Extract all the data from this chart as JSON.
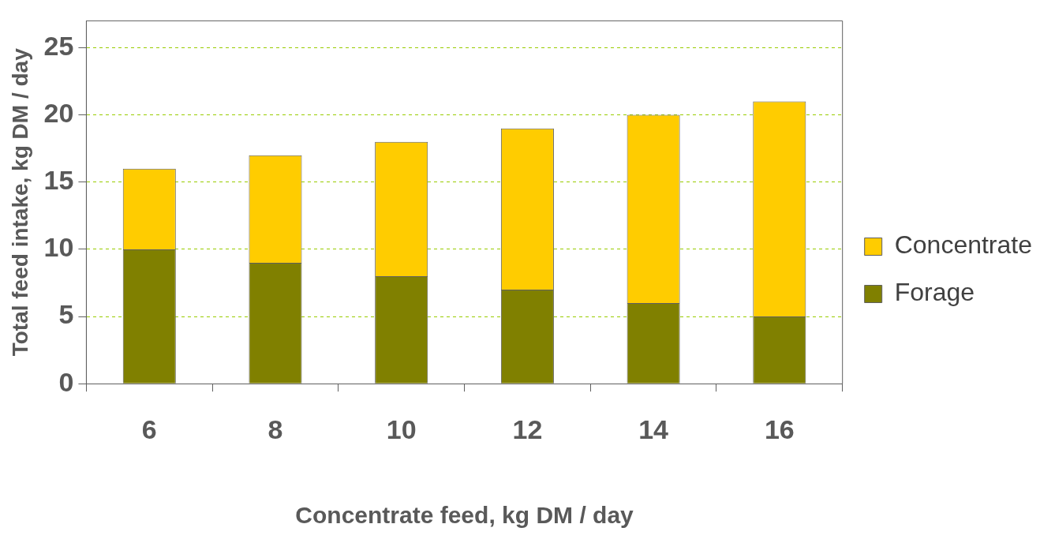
{
  "chart_data": {
    "type": "bar",
    "stacked": true,
    "xlabel": "Concentrate feed, kg DM / day",
    "ylabel": "Total feed intake, kg DM / day",
    "categories": [
      "6",
      "8",
      "10",
      "12",
      "14",
      "16"
    ],
    "series": [
      {
        "name": "Forage",
        "color": "#808000",
        "values": [
          10,
          9,
          8,
          7,
          6,
          5
        ]
      },
      {
        "name": "Concentrate",
        "color": "#ffcc00",
        "values": [
          6,
          8,
          10,
          12,
          14,
          16
        ]
      }
    ],
    "ylim": [
      0,
      27
    ],
    "yticks": [
      0,
      5,
      10,
      15,
      20,
      25
    ],
    "grid": "y",
    "legend": "right"
  }
}
